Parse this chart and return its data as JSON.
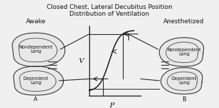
{
  "title_line1": "Closed Chest, Lateral Decubitus Position",
  "title_line2": "Distribution of Ventilation",
  "label_awake": "Awake",
  "label_anesthetized": "Anesthetized",
  "label_A": "A",
  "label_B": "B",
  "label_V": "V",
  "label_P": "P",
  "label_nondep_lung": "Nondependent\nLung",
  "label_dep_lung": "Dependent\nLung",
  "bg_color": "#f0f0f0",
  "title_fontsize": 6.5,
  "lung_label_fontsize": 4.8,
  "awake_anest_fontsize": 6.5,
  "vp_fontsize": 7.5,
  "ab_fontsize": 6.0,
  "line_color": "#222222",
  "lung_face_color": "#e8e8e8",
  "lung_edge_color": "#333333"
}
